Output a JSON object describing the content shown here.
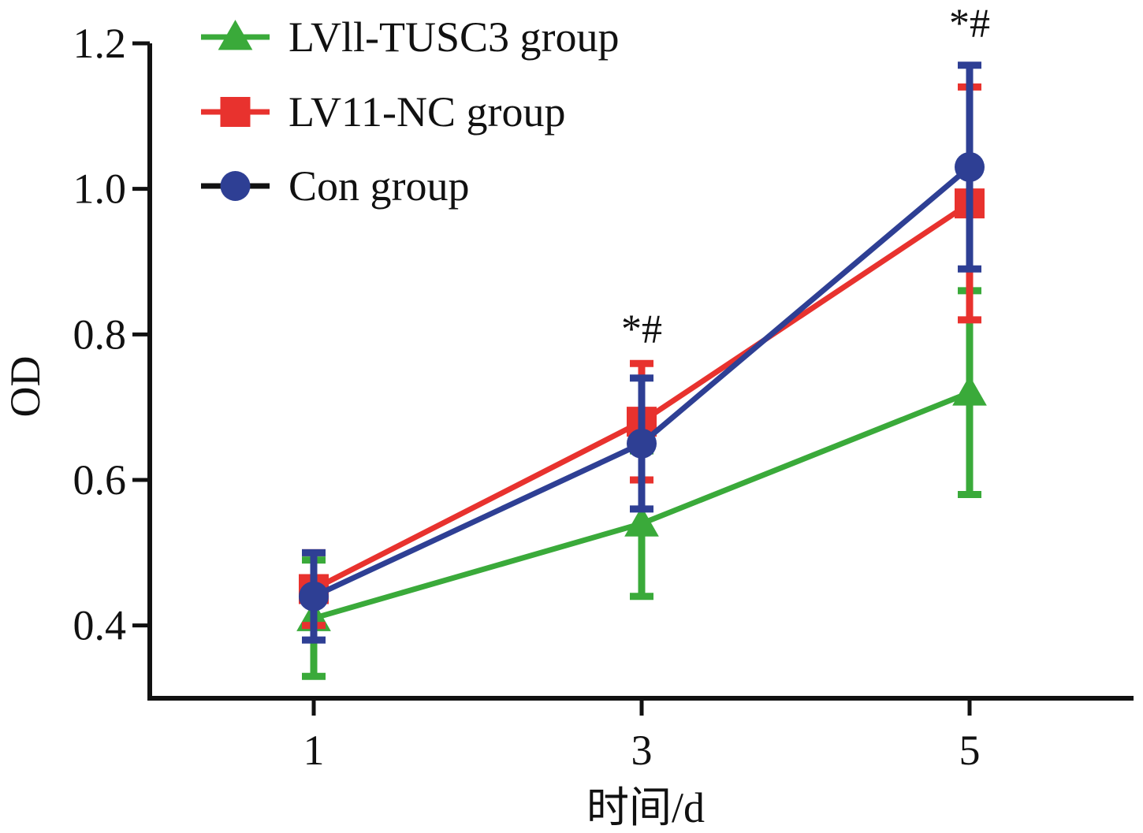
{
  "chart_data": {
    "type": "line",
    "xlabel": "时间/d",
    "ylabel": "OD",
    "x": [
      1,
      3,
      5
    ],
    "x_tick_labels": [
      "1",
      "3",
      "5"
    ],
    "ylim": [
      0.3,
      1.2
    ],
    "y_ticks": [
      0.4,
      0.6,
      0.8,
      1.0,
      1.2
    ],
    "y_tick_labels": [
      "0.4",
      "0.6",
      "0.8",
      "1.0",
      "1.2"
    ],
    "grid": false,
    "legend_position": "top-left",
    "series": [
      {
        "name": "LVll-TUSC3 group",
        "color": "#3aaa3a",
        "marker": "triangle",
        "values": [
          0.41,
          0.54,
          0.72
        ],
        "errors": [
          0.08,
          0.1,
          0.14
        ]
      },
      {
        "name": "LV11-NC group",
        "color": "#e8322e",
        "marker": "square",
        "values": [
          0.45,
          0.68,
          0.98
        ],
        "errors": [
          0.05,
          0.08,
          0.16
        ]
      },
      {
        "name": "Con group",
        "color": "#2e3f94",
        "marker": "circle",
        "values": [
          0.44,
          0.65,
          1.03
        ],
        "errors": [
          0.06,
          0.09,
          0.14
        ]
      }
    ],
    "annotations": [
      {
        "x": 3,
        "y": 0.8,
        "text": "*#"
      },
      {
        "x": 5,
        "y": 1.22,
        "text": "*#"
      }
    ]
  }
}
